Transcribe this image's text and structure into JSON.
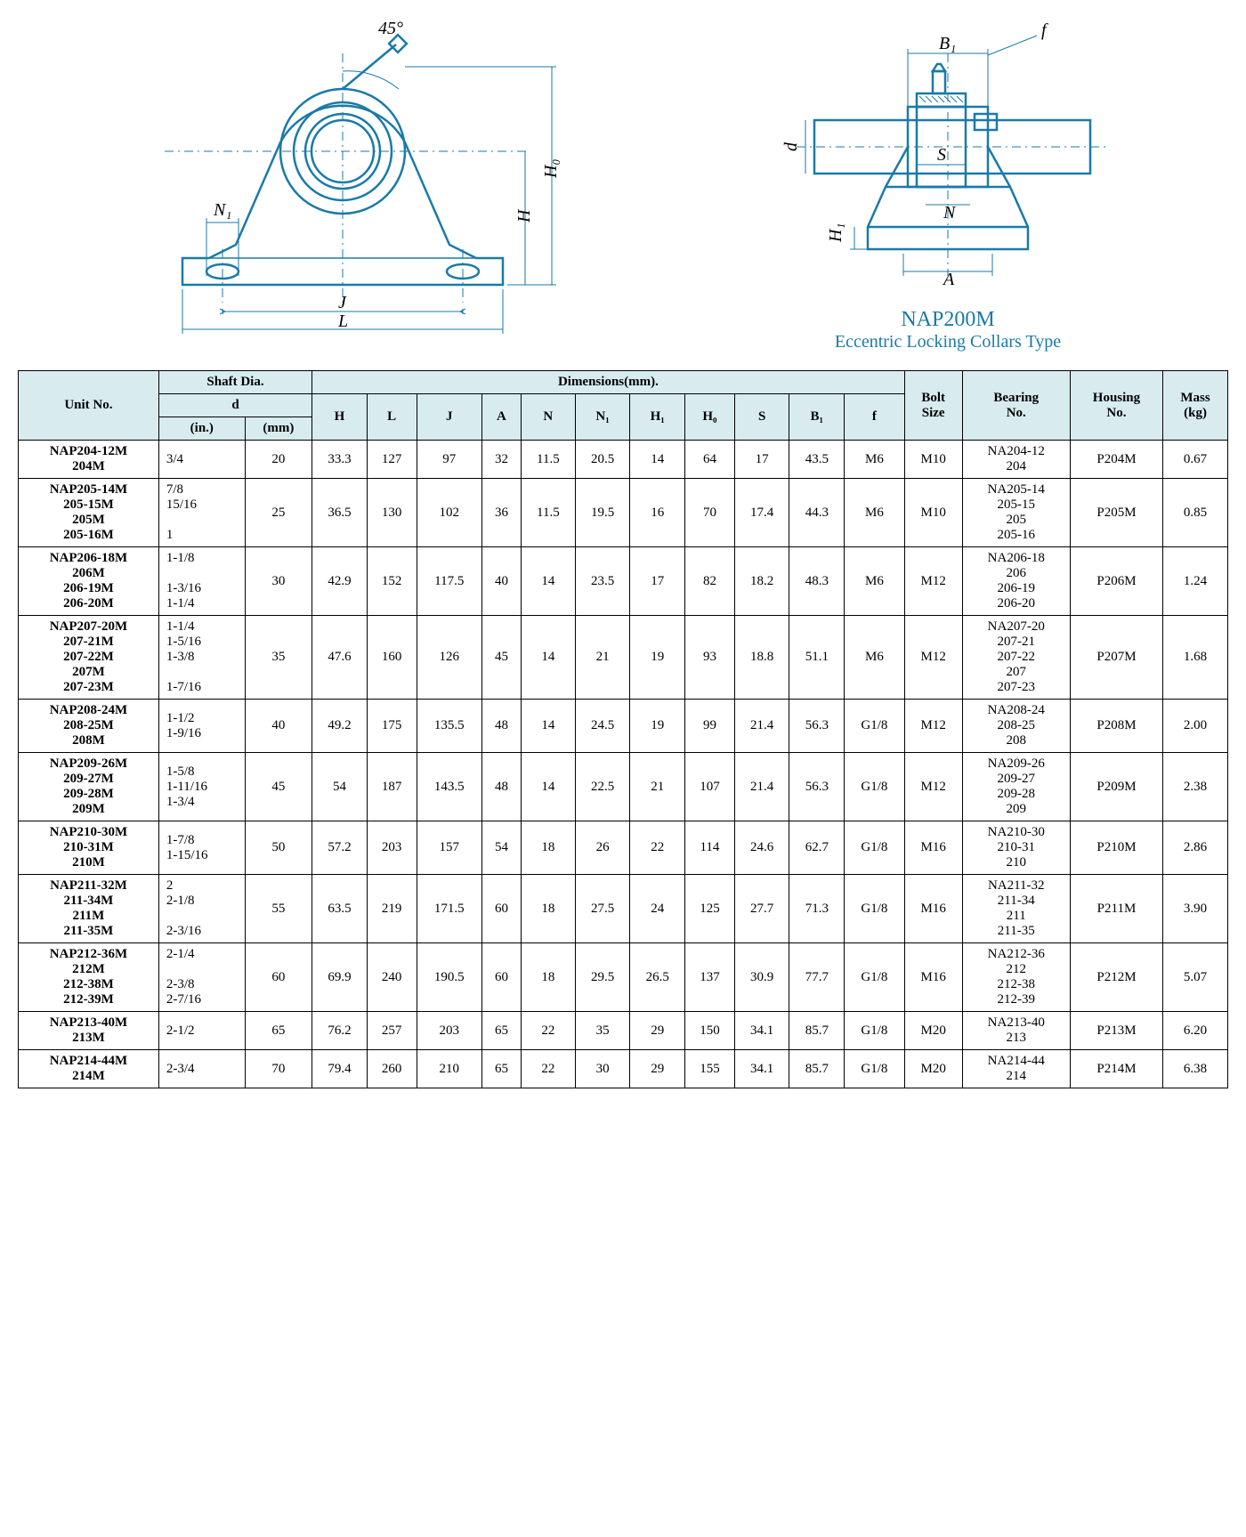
{
  "product": {
    "name": "NAP200M",
    "subtitle": "Eccentric Locking Collars Type"
  },
  "drawing_labels": {
    "angle": "45°",
    "J": "J",
    "L": "L",
    "N1": "N₁",
    "H": "H",
    "H0": "H₀",
    "B1": "B₁",
    "f": "f",
    "d": "d",
    "S": "S",
    "N": "N",
    "A": "A",
    "H1": "H₁"
  },
  "colors": {
    "line": "#1a7aa8",
    "header_bg": "#d8ecf0",
    "text": "#000000"
  },
  "table": {
    "headers": {
      "unit": "Unit No.",
      "shaft": "Shaft Dia.",
      "d": "d",
      "in": "(in.)",
      "mm": "(mm)",
      "dimensions": "Dimensions(mm).",
      "H": "H",
      "L": "L",
      "J": "J",
      "A": "A",
      "N": "N",
      "N1": "N₁",
      "H1": "H₁",
      "H0": "H₀",
      "S": "S",
      "B1": "B₁",
      "f": "f",
      "bolt": "Bolt\nSize",
      "bearing": "Bearing\nNo.",
      "housing": "Housing\nNo.",
      "mass": "Mass\n(kg)"
    },
    "rows": [
      {
        "unit": "NAP204-12M\n204M",
        "in": "3/4",
        "mm": "20",
        "H": "33.3",
        "L": "127",
        "J": "97",
        "A": "32",
        "N": "11.5",
        "N1": "20.5",
        "H1": "14",
        "H0": "64",
        "S": "17",
        "B1": "43.5",
        "f": "M6",
        "bolt": "M10",
        "bearing": "NA204-12\n204",
        "housing": "P204M",
        "mass": "0.67"
      },
      {
        "unit": "NAP205-14M\n205-15M\n205M\n205-16M",
        "in": "7/8\n15/16\n\n1",
        "mm": "25",
        "H": "36.5",
        "L": "130",
        "J": "102",
        "A": "36",
        "N": "11.5",
        "N1": "19.5",
        "H1": "16",
        "H0": "70",
        "S": "17.4",
        "B1": "44.3",
        "f": "M6",
        "bolt": "M10",
        "bearing": "NA205-14\n205-15\n205\n205-16",
        "housing": "P205M",
        "mass": "0.85"
      },
      {
        "unit": "NAP206-18M\n206M\n206-19M\n206-20M",
        "in": "1-1/8\n\n1-3/16\n1-1/4",
        "mm": "30",
        "H": "42.9",
        "L": "152",
        "J": "117.5",
        "A": "40",
        "N": "14",
        "N1": "23.5",
        "H1": "17",
        "H0": "82",
        "S": "18.2",
        "B1": "48.3",
        "f": "M6",
        "bolt": "M12",
        "bearing": "NA206-18\n206\n206-19\n206-20",
        "housing": "P206M",
        "mass": "1.24"
      },
      {
        "unit": "NAP207-20M\n207-21M\n207-22M\n207M\n207-23M",
        "in": "1-1/4\n1-5/16\n1-3/8\n\n1-7/16",
        "mm": "35",
        "H": "47.6",
        "L": "160",
        "J": "126",
        "A": "45",
        "N": "14",
        "N1": "21",
        "H1": "19",
        "H0": "93",
        "S": "18.8",
        "B1": "51.1",
        "f": "M6",
        "bolt": "M12",
        "bearing": "NA207-20\n207-21\n207-22\n207\n207-23",
        "housing": "P207M",
        "mass": "1.68"
      },
      {
        "unit": "NAP208-24M\n208-25M\n208M",
        "in": "1-1/2\n1-9/16\n",
        "mm": "40",
        "H": "49.2",
        "L": "175",
        "J": "135.5",
        "A": "48",
        "N": "14",
        "N1": "24.5",
        "H1": "19",
        "H0": "99",
        "S": "21.4",
        "B1": "56.3",
        "f": "G1/8",
        "bolt": "M12",
        "bearing": "NA208-24\n208-25\n208",
        "housing": "P208M",
        "mass": "2.00"
      },
      {
        "unit": "NAP209-26M\n209-27M\n209-28M\n209M",
        "in": "1-5/8\n1-11/16\n1-3/4\n",
        "mm": "45",
        "H": "54",
        "L": "187",
        "J": "143.5",
        "A": "48",
        "N": "14",
        "N1": "22.5",
        "H1": "21",
        "H0": "107",
        "S": "21.4",
        "B1": "56.3",
        "f": "G1/8",
        "bolt": "M12",
        "bearing": "NA209-26\n209-27\n209-28\n209",
        "housing": "P209M",
        "mass": "2.38"
      },
      {
        "unit": "NAP210-30M\n210-31M\n210M",
        "in": "1-7/8\n1-15/16\n",
        "mm": "50",
        "H": "57.2",
        "L": "203",
        "J": "157",
        "A": "54",
        "N": "18",
        "N1": "26",
        "H1": "22",
        "H0": "114",
        "S": "24.6",
        "B1": "62.7",
        "f": "G1/8",
        "bolt": "M16",
        "bearing": "NA210-30\n210-31\n210",
        "housing": "P210M",
        "mass": "2.86"
      },
      {
        "unit": "NAP211-32M\n211-34M\n211M\n211-35M",
        "in": "2\n2-1/8\n\n2-3/16",
        "mm": "55",
        "H": "63.5",
        "L": "219",
        "J": "171.5",
        "A": "60",
        "N": "18",
        "N1": "27.5",
        "H1": "24",
        "H0": "125",
        "S": "27.7",
        "B1": "71.3",
        "f": "G1/8",
        "bolt": "M16",
        "bearing": "NA211-32\n211-34\n211\n211-35",
        "housing": "P211M",
        "mass": "3.90"
      },
      {
        "unit": "NAP212-36M\n212M\n212-38M\n212-39M",
        "in": "2-1/4\n\n2-3/8\n2-7/16",
        "mm": "60",
        "H": "69.9",
        "L": "240",
        "J": "190.5",
        "A": "60",
        "N": "18",
        "N1": "29.5",
        "H1": "26.5",
        "H0": "137",
        "S": "30.9",
        "B1": "77.7",
        "f": "G1/8",
        "bolt": "M16",
        "bearing": "NA212-36\n212\n212-38\n212-39",
        "housing": "P212M",
        "mass": "5.07"
      },
      {
        "unit": "NAP213-40M\n213M",
        "in": "2-1/2\n",
        "mm": "65",
        "H": "76.2",
        "L": "257",
        "J": "203",
        "A": "65",
        "N": "22",
        "N1": "35",
        "H1": "29",
        "H0": "150",
        "S": "34.1",
        "B1": "85.7",
        "f": "G1/8",
        "bolt": "M20",
        "bearing": "NA213-40\n213",
        "housing": "P213M",
        "mass": "6.20"
      },
      {
        "unit": "NAP214-44M\n214M",
        "in": "2-3/4\n",
        "mm": "70",
        "H": "79.4",
        "L": "260",
        "J": "210",
        "A": "65",
        "N": "22",
        "N1": "30",
        "H1": "29",
        "H0": "155",
        "S": "34.1",
        "B1": "85.7",
        "f": "G1/8",
        "bolt": "M20",
        "bearing": "NA214-44\n214",
        "housing": "P214M",
        "mass": "6.38"
      }
    ]
  }
}
